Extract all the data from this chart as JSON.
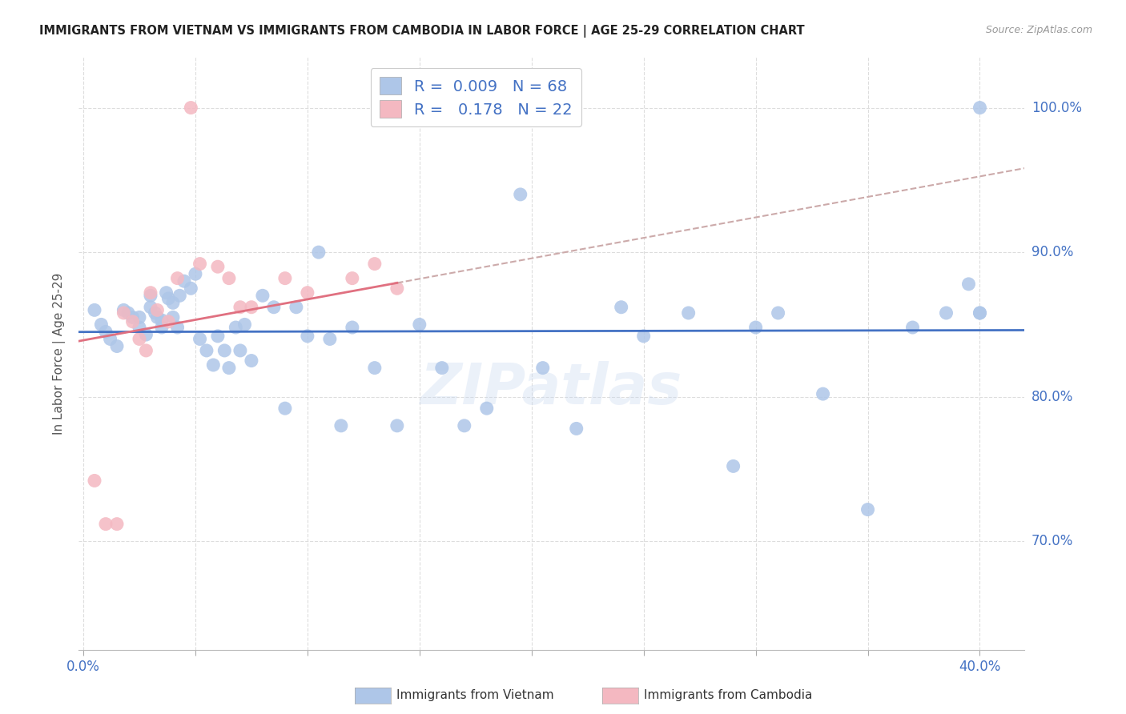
{
  "title": "IMMIGRANTS FROM VIETNAM VS IMMIGRANTS FROM CAMBODIA IN LABOR FORCE | AGE 25-29 CORRELATION CHART",
  "source": "Source: ZipAtlas.com",
  "ylabel": "In Labor Force | Age 25-29",
  "yticks": [
    0.7,
    0.8,
    0.9,
    1.0
  ],
  "ytick_labels": [
    "70.0%",
    "80.0%",
    "90.0%",
    "100.0%"
  ],
  "xticks": [
    0.0,
    0.05,
    0.1,
    0.15,
    0.2,
    0.25,
    0.3,
    0.35,
    0.4
  ],
  "xlim": [
    -0.002,
    0.42
  ],
  "ylim": [
    0.625,
    1.035
  ],
  "vietnam_color": "#aec6e8",
  "cambodia_color": "#f4b8c1",
  "vietnam_R": 0.009,
  "vietnam_N": 68,
  "cambodia_R": 0.178,
  "cambodia_N": 22,
  "trend_vietnam_color": "#4472c4",
  "trend_cambodia_solid_color": "#e07080",
  "trend_cambodia_dash_color": "#ccaaaa",
  "background_color": "#ffffff",
  "grid_color": "#dddddd",
  "vietnam_x": [
    0.005,
    0.008,
    0.01,
    0.012,
    0.015,
    0.018,
    0.02,
    0.022,
    0.025,
    0.025,
    0.028,
    0.03,
    0.03,
    0.032,
    0.033,
    0.035,
    0.035,
    0.037,
    0.038,
    0.04,
    0.04,
    0.042,
    0.043,
    0.045,
    0.048,
    0.05,
    0.052,
    0.055,
    0.058,
    0.06,
    0.063,
    0.065,
    0.068,
    0.07,
    0.072,
    0.075,
    0.08,
    0.085,
    0.09,
    0.095,
    0.1,
    0.105,
    0.11,
    0.115,
    0.12,
    0.13,
    0.14,
    0.15,
    0.16,
    0.17,
    0.18,
    0.195,
    0.205,
    0.22,
    0.24,
    0.25,
    0.27,
    0.29,
    0.3,
    0.31,
    0.33,
    0.35,
    0.37,
    0.385,
    0.395,
    0.4,
    0.4,
    0.4
  ],
  "vietnam_y": [
    0.86,
    0.85,
    0.845,
    0.84,
    0.835,
    0.86,
    0.858,
    0.855,
    0.855,
    0.848,
    0.843,
    0.87,
    0.862,
    0.858,
    0.855,
    0.853,
    0.848,
    0.872,
    0.868,
    0.865,
    0.855,
    0.848,
    0.87,
    0.88,
    0.875,
    0.885,
    0.84,
    0.832,
    0.822,
    0.842,
    0.832,
    0.82,
    0.848,
    0.832,
    0.85,
    0.825,
    0.87,
    0.862,
    0.792,
    0.862,
    0.842,
    0.9,
    0.84,
    0.78,
    0.848,
    0.82,
    0.78,
    0.85,
    0.82,
    0.78,
    0.792,
    0.94,
    0.82,
    0.778,
    0.862,
    0.842,
    0.858,
    0.752,
    0.848,
    0.858,
    0.802,
    0.722,
    0.848,
    0.858,
    0.878,
    0.858,
    1.0,
    0.858
  ],
  "cambodia_x": [
    0.005,
    0.01,
    0.015,
    0.018,
    0.022,
    0.025,
    0.028,
    0.03,
    0.033,
    0.038,
    0.042,
    0.048,
    0.052,
    0.06,
    0.065,
    0.07,
    0.075,
    0.09,
    0.1,
    0.12,
    0.13,
    0.14
  ],
  "cambodia_y": [
    0.742,
    0.712,
    0.712,
    0.858,
    0.852,
    0.84,
    0.832,
    0.872,
    0.86,
    0.852,
    0.882,
    1.0,
    0.892,
    0.89,
    0.882,
    0.862,
    0.862,
    0.882,
    0.872,
    0.882,
    0.892,
    0.875
  ],
  "watermark": "ZIPatlas",
  "legend_r_color": "#4472c4",
  "legend_n_color": "#e07080"
}
